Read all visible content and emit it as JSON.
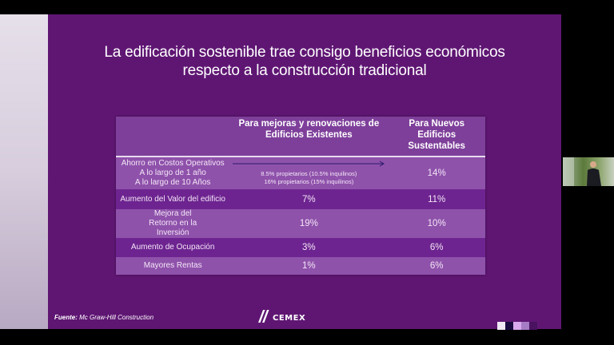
{
  "slide": {
    "title_line1": "La edificación sostenible trae consigo beneficios económicos",
    "title_line2": "respecto a la construcción tradicional",
    "table": {
      "headers": [
        "",
        "Para mejoras y renovaciones de Edificios Existentes",
        "Para Nuevos Edificios Sustentables"
      ],
      "rows": [
        {
          "label_lines": [
            "Ahorro en Costos Operativos",
            "A lo largo de 1 año",
            "A lo largo de 10 Años"
          ],
          "existing_lines": [
            "8.5% propietarios (10.5% inquilinos)",
            "16% propietarios (15% inquilinos)"
          ],
          "new": "14%"
        },
        {
          "label": "Aumento del Valor del edificio",
          "existing": "7%",
          "new": "11%"
        },
        {
          "label": "Mejora del Retorno en la Inversión",
          "existing": "19%",
          "new": "10%"
        },
        {
          "label": "Aumento de Ocupación",
          "existing": "3%",
          "new": "6%"
        },
        {
          "label": "Mayores Rentas",
          "existing": "1%",
          "new": "6%"
        }
      ]
    },
    "source_label": "Fuente:",
    "source_text": " Mc Graw-Hill Construction",
    "logo_text": "CEMEX",
    "swatch_colors": [
      "#f0e8f4",
      "#1a0a40",
      "#d9a8ee",
      "#a67cc4",
      "#4a1260"
    ],
    "colors": {
      "background": "#5f1673",
      "row_light": "#8f52ab",
      "row_dark": "#6d2490",
      "arrow": "#2a1a6a"
    }
  },
  "webcam": {
    "icon": "participant-video-thumbnail"
  }
}
